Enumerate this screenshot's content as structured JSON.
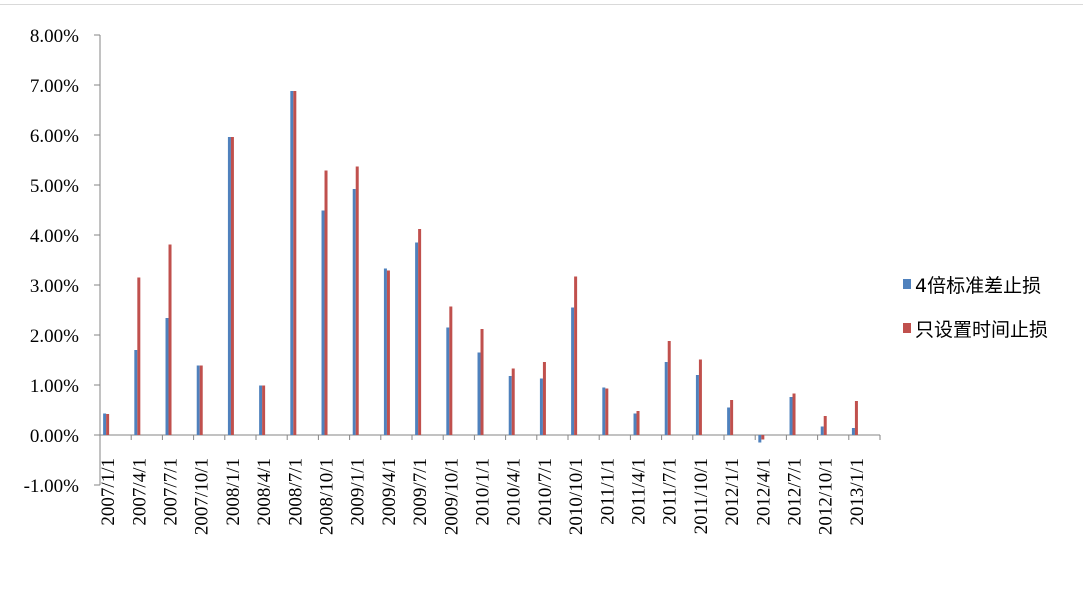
{
  "chart_data": {
    "type": "bar",
    "title": "",
    "xlabel": "",
    "ylabel": "",
    "ylim": [
      -1.0,
      8.0
    ],
    "y_ticks": [
      -1.0,
      0.0,
      1.0,
      2.0,
      3.0,
      4.0,
      5.0,
      6.0,
      7.0,
      8.0
    ],
    "y_tick_labels": [
      "-1.00%",
      "0.00%",
      "1.00%",
      "2.00%",
      "3.00%",
      "4.00%",
      "5.00%",
      "6.00%",
      "7.00%",
      "8.00%"
    ],
    "grid": false,
    "legend_position": "right",
    "categories": [
      "2007/1/1",
      "2007/4/1",
      "2007/7/1",
      "2007/10/1",
      "2008/1/1",
      "2008/4/1",
      "2008/7/1",
      "2008/10/1",
      "2009/1/1",
      "2009/4/1",
      "2009/7/1",
      "2009/10/1",
      "2010/1/1",
      "2010/4/1",
      "2010/7/1",
      "2010/10/1",
      "2011/1/1",
      "2011/4/1",
      "2011/7/1",
      "2011/10/1",
      "2012/1/1",
      "2012/4/1",
      "2012/7/1",
      "2012/10/1",
      "2013/1/1"
    ],
    "series": [
      {
        "name": "4倍标准差止损",
        "color": "#4F81BD",
        "values": [
          0.43,
          1.7,
          2.34,
          1.39,
          5.96,
          0.99,
          6.88,
          4.49,
          4.92,
          3.33,
          3.85,
          2.15,
          1.65,
          1.18,
          1.13,
          2.55,
          0.95,
          0.43,
          1.46,
          1.2,
          0.55,
          -0.15,
          0.76,
          0.17,
          0.14
        ]
      },
      {
        "name": "只设置时间止损",
        "color": "#C0504D",
        "values": [
          0.42,
          3.15,
          3.81,
          1.39,
          5.96,
          0.99,
          6.88,
          5.29,
          5.37,
          3.29,
          4.12,
          2.57,
          2.12,
          1.33,
          1.46,
          3.17,
          0.93,
          0.48,
          1.88,
          1.51,
          0.7,
          -0.09,
          0.83,
          0.38,
          0.68
        ]
      }
    ]
  }
}
